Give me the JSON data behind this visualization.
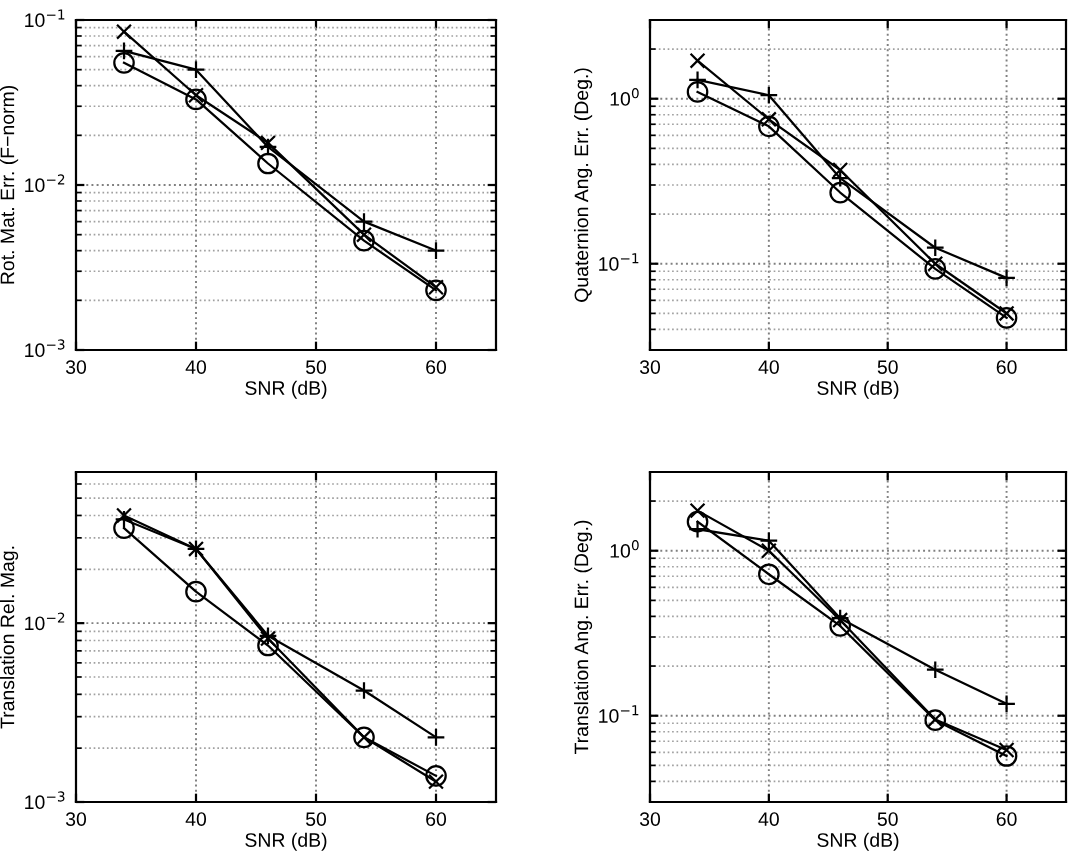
{
  "chart_data": [
    {
      "type": "line",
      "xlabel": "SNR (dB)",
      "ylabel": "Rot. Mat. Err. (F−norm)",
      "log": "y",
      "grid": true,
      "x": [
        34,
        40,
        46,
        54,
        60
      ],
      "xlim": [
        30,
        65
      ],
      "xticks": [
        30,
        40,
        50,
        60
      ],
      "ylim": [
        0.001,
        0.1
      ],
      "yticks": [
        {
          "value": 0.001,
          "label": "10$^{−3}$"
        },
        {
          "value": 0.01,
          "label": "10$^{−2}$"
        },
        {
          "value": 0.1,
          "label": "10$^{−1}$"
        }
      ],
      "series": [
        {
          "color": "#000000",
          "marker": "cross",
          "values": [
            0.085,
            0.035,
            0.018,
            0.005,
            0.0024
          ]
        },
        {
          "color": "#000000",
          "marker": "plus",
          "values": [
            0.065,
            0.05,
            0.017,
            0.006,
            0.004
          ]
        },
        {
          "color": "#000000",
          "marker": "circle",
          "values": [
            0.055,
            0.033,
            0.0135,
            0.0046,
            0.0023
          ]
        }
      ]
    },
    {
      "type": "line",
      "xlabel": "SNR (dB)",
      "ylabel": "Quaternion Ang. Err. (Deg.)",
      "log": "y",
      "grid": true,
      "x": [
        34,
        40,
        46,
        54,
        60
      ],
      "xlim": [
        30,
        65
      ],
      "xticks": [
        30,
        40,
        50,
        60
      ],
      "ylim": [
        0.03,
        3
      ],
      "yticks": [
        {
          "value": 0.1,
          "label": "10$^{−1}$"
        },
        {
          "value": 1,
          "label": "10$^{0}$"
        }
      ],
      "series": [
        {
          "color": "#000000",
          "marker": "cross",
          "values": [
            1.7,
            0.75,
            0.37,
            0.1,
            0.05
          ]
        },
        {
          "color": "#000000",
          "marker": "plus",
          "values": [
            1.3,
            1.05,
            0.33,
            0.125,
            0.082
          ]
        },
        {
          "color": "#000000",
          "marker": "circle",
          "values": [
            1.1,
            0.68,
            0.27,
            0.093,
            0.047
          ]
        }
      ]
    },
    {
      "type": "line",
      "xlabel": "SNR (dB)",
      "ylabel": "Translation Rel. Mag.",
      "log": "y",
      "grid": true,
      "x": [
        34,
        40,
        46,
        54,
        60
      ],
      "xlim": [
        30,
        65
      ],
      "xticks": [
        30,
        40,
        50,
        60
      ],
      "ylim": [
        0.001,
        0.07
      ],
      "yticks": [
        {
          "value": 0.001,
          "label": "10$^{−3}$"
        },
        {
          "value": 0.01,
          "label": "10$^{−2}$"
        }
      ],
      "series": [
        {
          "color": "#000000",
          "marker": "cross",
          "values": [
            0.04,
            0.026,
            0.0082,
            0.0023,
            0.0013
          ]
        },
        {
          "color": "#000000",
          "marker": "plus",
          "values": [
            0.038,
            0.026,
            0.0085,
            0.0042,
            0.0023
          ]
        },
        {
          "color": "#000000",
          "marker": "circle",
          "values": [
            0.034,
            0.015,
            0.0075,
            0.0023,
            0.0014
          ]
        }
      ]
    },
    {
      "type": "line",
      "xlabel": "SNR (dB)",
      "ylabel": "Translation Ang. Err. (Deg.)",
      "log": "y",
      "grid": true,
      "x": [
        34,
        40,
        46,
        54,
        60
      ],
      "xlim": [
        30,
        65
      ],
      "xticks": [
        30,
        40,
        50,
        60
      ],
      "ylim": [
        0.03,
        3
      ],
      "yticks": [
        {
          "value": 0.1,
          "label": "10$^{−1}$"
        },
        {
          "value": 1,
          "label": "10$^{0}$"
        }
      ],
      "series": [
        {
          "color": "#000000",
          "marker": "cross",
          "values": [
            1.75,
            1.0,
            0.38,
            0.095,
            0.062
          ]
        },
        {
          "color": "#000000",
          "marker": "plus",
          "values": [
            1.35,
            1.15,
            0.39,
            0.19,
            0.118
          ]
        },
        {
          "color": "#000000",
          "marker": "circle",
          "values": [
            1.5,
            0.72,
            0.35,
            0.094,
            0.057
          ]
        }
      ]
    }
  ]
}
